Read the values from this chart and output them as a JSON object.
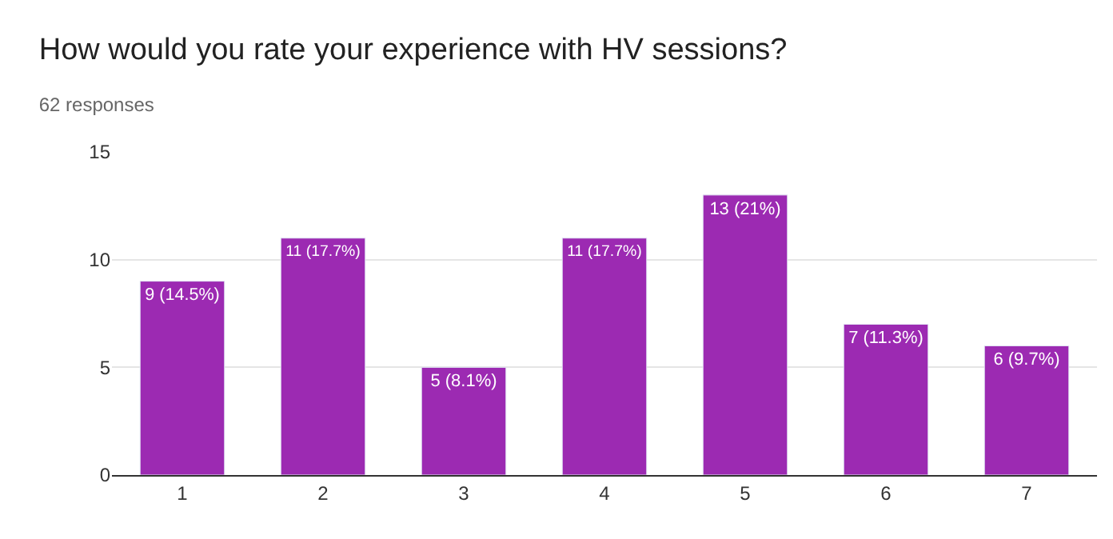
{
  "chart_data": {
    "type": "bar",
    "title": "How would you rate your experience with HV sessions?",
    "subtitle": "62 responses",
    "categories": [
      "1",
      "2",
      "3",
      "4",
      "5",
      "6",
      "7"
    ],
    "values": [
      9,
      11,
      5,
      11,
      13,
      7,
      6
    ],
    "value_labels": [
      "9 (14.5%)",
      "11 (17.7%)",
      "5 (8.1%)",
      "11 (17.7%)",
      "13 (21%)",
      "7 (11.3%)",
      "6 (9.7%)"
    ],
    "color": "#9c2ab2",
    "ylim": [
      0,
      15
    ],
    "yticks": [
      0,
      5,
      10,
      15
    ],
    "grid": "y",
    "legend": false
  }
}
